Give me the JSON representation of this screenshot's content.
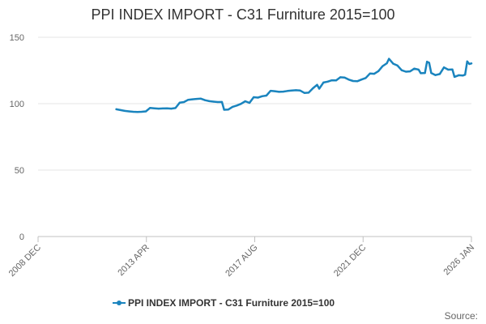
{
  "chart_data": {
    "type": "line",
    "title": "PPI INDEX IMPORT - C31 Furniture 2015=100",
    "ylim": [
      0,
      150
    ],
    "yticks": [
      0,
      50,
      100,
      150
    ],
    "xlim": [
      "2008-12",
      "2026-01"
    ],
    "xticks": [
      "2008 DEC",
      "2013 APR",
      "2017 AUG",
      "2021 DEC",
      "2026 JAN"
    ],
    "grid": "horizontal",
    "legend_position": "bottom",
    "series": [
      {
        "name": "PPI INDEX IMPORT - C31 Furniture 2015=100",
        "color": "#1a84be",
        "points": [
          [
            "2012-01",
            95.8
          ],
          [
            "2012-03",
            95.2
          ],
          [
            "2012-05",
            94.6
          ],
          [
            "2012-07",
            94.2
          ],
          [
            "2012-09",
            93.9
          ],
          [
            "2012-11",
            93.7
          ],
          [
            "2013-01",
            93.9
          ],
          [
            "2013-03",
            94.2
          ],
          [
            "2013-05",
            96.8
          ],
          [
            "2013-07",
            96.5
          ],
          [
            "2013-09",
            96.3
          ],
          [
            "2013-11",
            96.4
          ],
          [
            "2014-01",
            96.5
          ],
          [
            "2014-03",
            96.3
          ],
          [
            "2014-05",
            96.7
          ],
          [
            "2014-07",
            100.8
          ],
          [
            "2014-09",
            101.2
          ],
          [
            "2014-11",
            102.9
          ],
          [
            "2015-01",
            103.3
          ],
          [
            "2015-03",
            103.6
          ],
          [
            "2015-05",
            103.8
          ],
          [
            "2015-07",
            102.6
          ],
          [
            "2015-09",
            101.9
          ],
          [
            "2015-11",
            101.5
          ],
          [
            "2016-01",
            101.2
          ],
          [
            "2016-03",
            101.3
          ],
          [
            "2016-04",
            95.4
          ],
          [
            "2016-06",
            95.6
          ],
          [
            "2016-08",
            97.6
          ],
          [
            "2016-10",
            98.6
          ],
          [
            "2016-12",
            99.9
          ],
          [
            "2017-02",
            101.8
          ],
          [
            "2017-04",
            100.6
          ],
          [
            "2017-06",
            104.9
          ],
          [
            "2017-08",
            104.6
          ],
          [
            "2017-10",
            105.6
          ],
          [
            "2017-12",
            106.1
          ],
          [
            "2018-02",
            109.7
          ],
          [
            "2018-04",
            109.4
          ],
          [
            "2018-06",
            108.9
          ],
          [
            "2018-08",
            109.1
          ],
          [
            "2018-10",
            109.6
          ],
          [
            "2018-12",
            109.9
          ],
          [
            "2019-02",
            110.1
          ],
          [
            "2019-04",
            109.9
          ],
          [
            "2019-06",
            108.1
          ],
          [
            "2019-08",
            108.3
          ],
          [
            "2019-10",
            111.6
          ],
          [
            "2019-12",
            114.2
          ],
          [
            "2020-01",
            111.3
          ],
          [
            "2020-03",
            115.9
          ],
          [
            "2020-05",
            116.6
          ],
          [
            "2020-07",
            117.6
          ],
          [
            "2020-09",
            117.5
          ],
          [
            "2020-11",
            119.9
          ],
          [
            "2021-01",
            119.7
          ],
          [
            "2021-03",
            118.1
          ],
          [
            "2021-05",
            117.1
          ],
          [
            "2021-07",
            116.9
          ],
          [
            "2021-09",
            118.2
          ],
          [
            "2021-11",
            119.3
          ],
          [
            "2022-01",
            122.7
          ],
          [
            "2022-03",
            122.5
          ],
          [
            "2022-05",
            124.5
          ],
          [
            "2022-07",
            128.3
          ],
          [
            "2022-09",
            130.4
          ],
          [
            "2022-10",
            133.8
          ],
          [
            "2022-12",
            130.1
          ],
          [
            "2023-02",
            128.7
          ],
          [
            "2023-04",
            125.2
          ],
          [
            "2023-06",
            124.1
          ],
          [
            "2023-08",
            124.3
          ],
          [
            "2023-10",
            126.4
          ],
          [
            "2023-12",
            125.6
          ],
          [
            "2024-01",
            122.9
          ],
          [
            "2024-03",
            123.1
          ],
          [
            "2024-04",
            131.6
          ],
          [
            "2024-05",
            130.8
          ],
          [
            "2024-06",
            123.1
          ],
          [
            "2024-08",
            121.5
          ],
          [
            "2024-10",
            122.3
          ],
          [
            "2024-12",
            127.3
          ],
          [
            "2025-02",
            125.6
          ],
          [
            "2025-04",
            125.8
          ],
          [
            "2025-05",
            120.2
          ],
          [
            "2025-07",
            121.4
          ],
          [
            "2025-09",
            121.2
          ],
          [
            "2025-10",
            121.8
          ],
          [
            "2025-11",
            131.8
          ],
          [
            "2025-12",
            129.9
          ],
          [
            "2026-01",
            130.3
          ]
        ]
      }
    ]
  },
  "source_label": "Source:"
}
